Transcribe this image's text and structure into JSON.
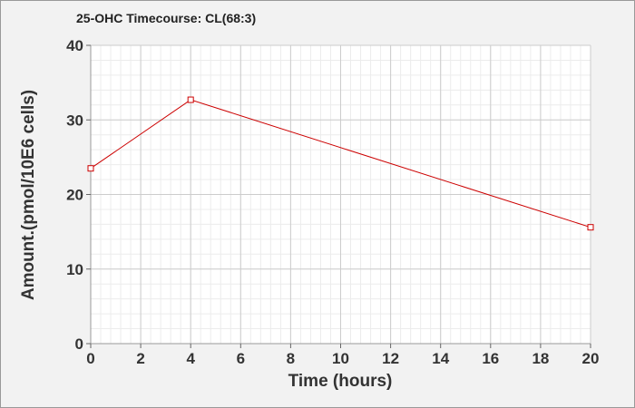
{
  "chart_data": {
    "type": "line",
    "title": "25-OHC Timecourse: CL(68:3)",
    "xlabel": "Time (hours)",
    "ylabel": "Amount.(pmol/10E6 cells)",
    "xlim": [
      0,
      20
    ],
    "ylim": [
      0,
      40
    ],
    "xticks": [
      0,
      2,
      4,
      6,
      8,
      10,
      12,
      14,
      16,
      18,
      20
    ],
    "yticks": [
      0,
      10,
      20,
      30,
      40
    ],
    "grid": true,
    "legend": "none",
    "series": [
      {
        "x": [
          0,
          4,
          20
        ],
        "y": [
          23.5,
          32.7,
          15.6
        ],
        "color": "#cc0000",
        "marker": "square"
      }
    ]
  },
  "colors": {
    "background": "#f2f2f2",
    "plot_area": "#ffffff",
    "major_grid": "#cccccc",
    "minor_grid": "#ececec",
    "line": "#cc0000"
  }
}
